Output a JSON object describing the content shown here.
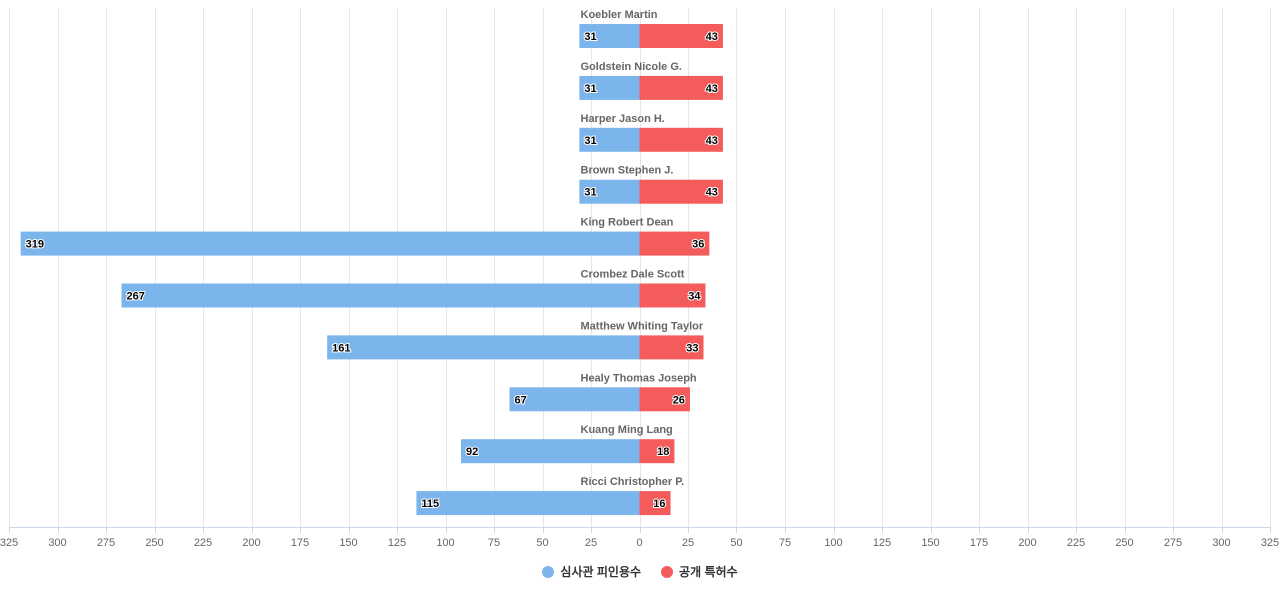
{
  "chart_data": {
    "type": "bar",
    "orientation": "horizontal-diverging",
    "categories": [
      "Koebler Martin",
      "Goldstein Nicole G.",
      "Harper Jason H.",
      "Brown Stephen J.",
      "King Robert Dean",
      "Crombez Dale Scott",
      "Matthew Whiting Taylor",
      "Healy Thomas Joseph",
      "Kuang Ming Lang",
      "Ricci Christopher P."
    ],
    "series": [
      {
        "name": "심사관 피인용수",
        "side": "left",
        "color": "#7cb5ec",
        "values": [
          31,
          31,
          31,
          31,
          319,
          267,
          161,
          67,
          92,
          115
        ]
      },
      {
        "name": "공개 특허수",
        "side": "right",
        "color": "#f45b5b",
        "values": [
          43,
          43,
          43,
          43,
          36,
          34,
          33,
          26,
          18,
          16
        ]
      }
    ],
    "xlim": [
      -325,
      325
    ],
    "xticks": [
      -325,
      -300,
      -275,
      -250,
      -225,
      -200,
      -175,
      -150,
      -125,
      -100,
      -75,
      -50,
      -25,
      0,
      25,
      50,
      75,
      100,
      125,
      150,
      175,
      200,
      225,
      250,
      275,
      300,
      325
    ],
    "tick_labels": [
      "325",
      "300",
      "275",
      "250",
      "225",
      "200",
      "175",
      "150",
      "125",
      "100",
      "75",
      "50",
      "25",
      "0",
      "25",
      "50",
      "75",
      "100",
      "125",
      "150",
      "175",
      "200",
      "225",
      "250",
      "275",
      "300",
      "325"
    ],
    "grid": true,
    "legend_position": "bottom-center"
  }
}
